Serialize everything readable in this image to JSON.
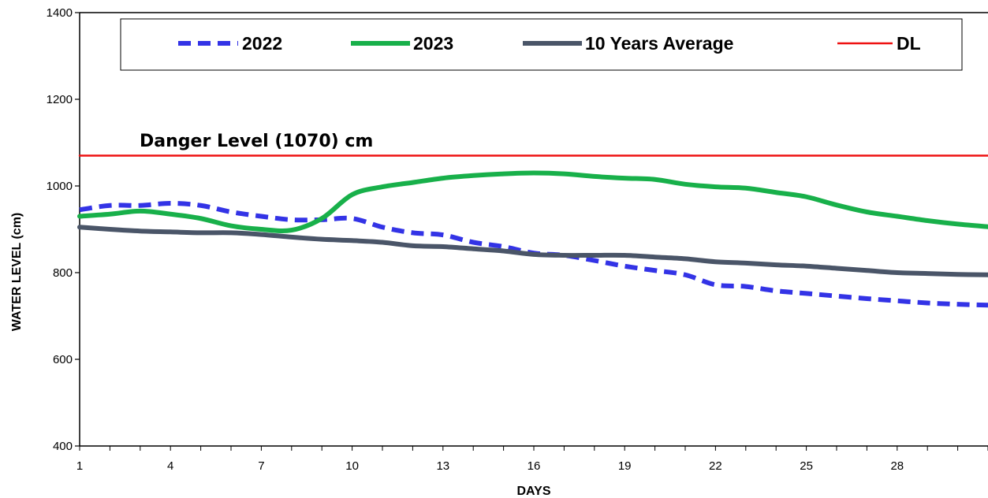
{
  "chart_data": {
    "type": "line",
    "title": "",
    "xlabel": "DAYS",
    "ylabel": "WATER LEVEL (cm)",
    "xlim": [
      1,
      31
    ],
    "ylim": [
      400,
      1400
    ],
    "x_ticks": [
      1,
      4,
      7,
      10,
      13,
      16,
      19,
      22,
      25,
      28
    ],
    "y_ticks": [
      400,
      600,
      800,
      1000,
      1200,
      1400
    ],
    "grid": false,
    "legend_position": "top",
    "annotation": "Danger Level (1070) cm",
    "series": [
      {
        "name": "2022",
        "style": "dashed",
        "color": "#3333e6",
        "x": [
          1,
          2,
          3,
          4,
          5,
          6,
          7,
          8,
          9,
          10,
          11,
          12,
          13,
          14,
          15,
          16,
          17,
          18,
          19,
          20,
          21,
          22,
          23,
          24,
          25,
          26,
          27,
          28,
          29,
          30,
          31
        ],
        "values": [
          945,
          955,
          955,
          960,
          955,
          940,
          930,
          922,
          922,
          925,
          905,
          892,
          887,
          870,
          860,
          845,
          840,
          828,
          815,
          805,
          795,
          772,
          768,
          758,
          752,
          746,
          740,
          735,
          730,
          727,
          725
        ]
      },
      {
        "name": "2023",
        "style": "solid",
        "color": "#18b04a",
        "x": [
          1,
          2,
          3,
          4,
          5,
          6,
          7,
          8,
          9,
          10,
          11,
          12,
          13,
          14,
          15,
          16,
          17,
          18,
          19,
          20,
          21,
          22,
          23,
          24,
          25,
          26,
          27,
          28,
          29,
          30,
          31
        ],
        "values": [
          930,
          935,
          942,
          935,
          925,
          908,
          900,
          898,
          925,
          980,
          998,
          1008,
          1018,
          1024,
          1028,
          1030,
          1028,
          1022,
          1018,
          1015,
          1004,
          998,
          995,
          985,
          975,
          956,
          940,
          930,
          920,
          912,
          906
        ]
      },
      {
        "name": "10 Years Average",
        "style": "solid",
        "color": "#4a5568",
        "x": [
          1,
          2,
          3,
          4,
          5,
          6,
          7,
          8,
          9,
          10,
          11,
          12,
          13,
          14,
          15,
          16,
          17,
          18,
          19,
          20,
          21,
          22,
          23,
          24,
          25,
          26,
          27,
          28,
          29,
          30,
          31
        ],
        "values": [
          905,
          900,
          896,
          894,
          892,
          892,
          888,
          882,
          877,
          874,
          870,
          862,
          860,
          855,
          850,
          842,
          840,
          840,
          840,
          836,
          832,
          825,
          822,
          818,
          815,
          810,
          805,
          800,
          798,
          796,
          795
        ]
      },
      {
        "name": "DL",
        "style": "solid",
        "color": "#ee1111",
        "x": [
          1,
          31
        ],
        "values": [
          1070,
          1070
        ]
      }
    ]
  }
}
